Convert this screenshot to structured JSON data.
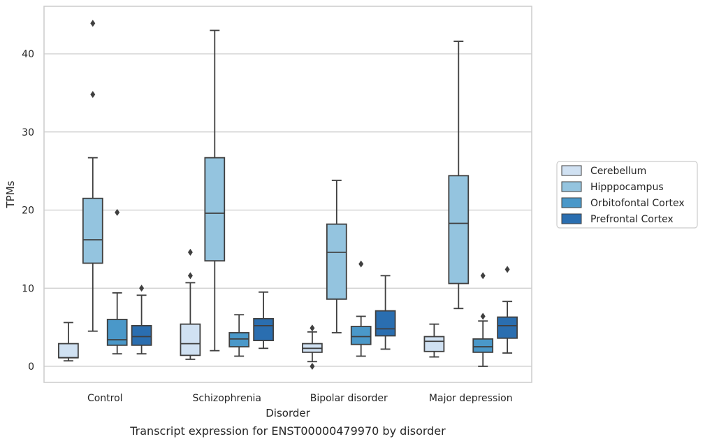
{
  "chart_data": {
    "type": "box",
    "xlabel": "Disorder",
    "ylabel": "TPMs",
    "caption": "Transcript expression for ENST00000479970 by disorder",
    "ylim": [
      -2,
      46
    ],
    "yticks": [
      0,
      10,
      20,
      30,
      40
    ],
    "grid": "horizontal",
    "legend_placement": "outside-right",
    "categories": [
      "Control",
      "Schizophrenia",
      "Bipolar disorder",
      "Major depression"
    ],
    "series": [
      {
        "name": "Cerebellum",
        "color": "#d0e1f2",
        "boxes": [
          {
            "whislo": 0.7,
            "q1": 1.1,
            "med": 1.1,
            "q3": 2.9,
            "whishi": 5.6,
            "fliers": []
          },
          {
            "whislo": 0.9,
            "q1": 1.4,
            "med": 2.9,
            "q3": 5.4,
            "whishi": 10.7,
            "fliers": [
              11.6,
              14.6
            ]
          },
          {
            "whislo": 0.6,
            "q1": 1.8,
            "med": 2.3,
            "q3": 2.9,
            "whishi": 4.4,
            "fliers": [
              0.0,
              4.9
            ]
          },
          {
            "whislo": 1.2,
            "q1": 1.9,
            "med": 3.2,
            "q3": 3.8,
            "whishi": 5.4,
            "fliers": []
          }
        ]
      },
      {
        "name": "Hipppocampus",
        "color": "#94c4df",
        "boxes": [
          {
            "whislo": 4.5,
            "q1": 13.2,
            "med": 16.2,
            "q3": 21.5,
            "whishi": 26.7,
            "fliers": [
              34.8,
              43.9
            ]
          },
          {
            "whislo": 2.0,
            "q1": 13.5,
            "med": 19.6,
            "q3": 26.7,
            "whishi": 43.0,
            "fliers": []
          },
          {
            "whislo": 4.3,
            "q1": 8.6,
            "med": 14.6,
            "q3": 18.2,
            "whishi": 23.8,
            "fliers": []
          },
          {
            "whislo": 7.4,
            "q1": 10.6,
            "med": 18.3,
            "q3": 24.4,
            "whishi": 41.6,
            "fliers": []
          }
        ]
      },
      {
        "name": "Orbitofontal Cortex",
        "color": "#4a98c9",
        "boxes": [
          {
            "whislo": 1.6,
            "q1": 2.7,
            "med": 3.4,
            "q3": 6.0,
            "whishi": 9.4,
            "fliers": [
              19.7
            ]
          },
          {
            "whislo": 1.3,
            "q1": 2.5,
            "med": 3.5,
            "q3": 4.3,
            "whishi": 6.6,
            "fliers": []
          },
          {
            "whislo": 1.3,
            "q1": 2.8,
            "med": 3.8,
            "q3": 5.1,
            "whishi": 6.4,
            "fliers": [
              13.1
            ]
          },
          {
            "whislo": 0.0,
            "q1": 1.8,
            "med": 2.5,
            "q3": 3.5,
            "whishi": 5.8,
            "fliers": [
              6.4,
              11.6
            ]
          }
        ]
      },
      {
        "name": "Prefrontal Cortex",
        "color": "#2a6eb0",
        "boxes": [
          {
            "whislo": 1.6,
            "q1": 2.7,
            "med": 3.8,
            "q3": 5.2,
            "whishi": 9.1,
            "fliers": [
              10.0
            ]
          },
          {
            "whislo": 2.3,
            "q1": 3.3,
            "med": 5.2,
            "q3": 6.1,
            "whishi": 9.5,
            "fliers": []
          },
          {
            "whislo": 2.2,
            "q1": 3.9,
            "med": 4.8,
            "q3": 7.1,
            "whishi": 11.6,
            "fliers": []
          },
          {
            "whislo": 1.7,
            "q1": 3.6,
            "med": 5.2,
            "q3": 6.3,
            "whishi": 8.3,
            "fliers": [
              12.4
            ]
          }
        ]
      }
    ]
  }
}
